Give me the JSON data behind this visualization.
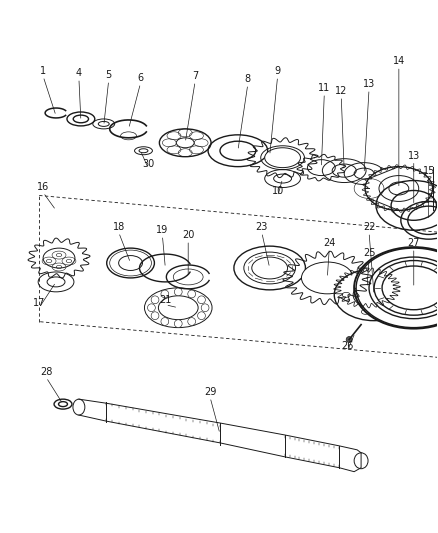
{
  "bg_color": "#ffffff",
  "line_color": "#1a1a1a",
  "label_color": "#1a1a1a",
  "fig_width": 4.38,
  "fig_height": 5.33,
  "dpi": 100
}
